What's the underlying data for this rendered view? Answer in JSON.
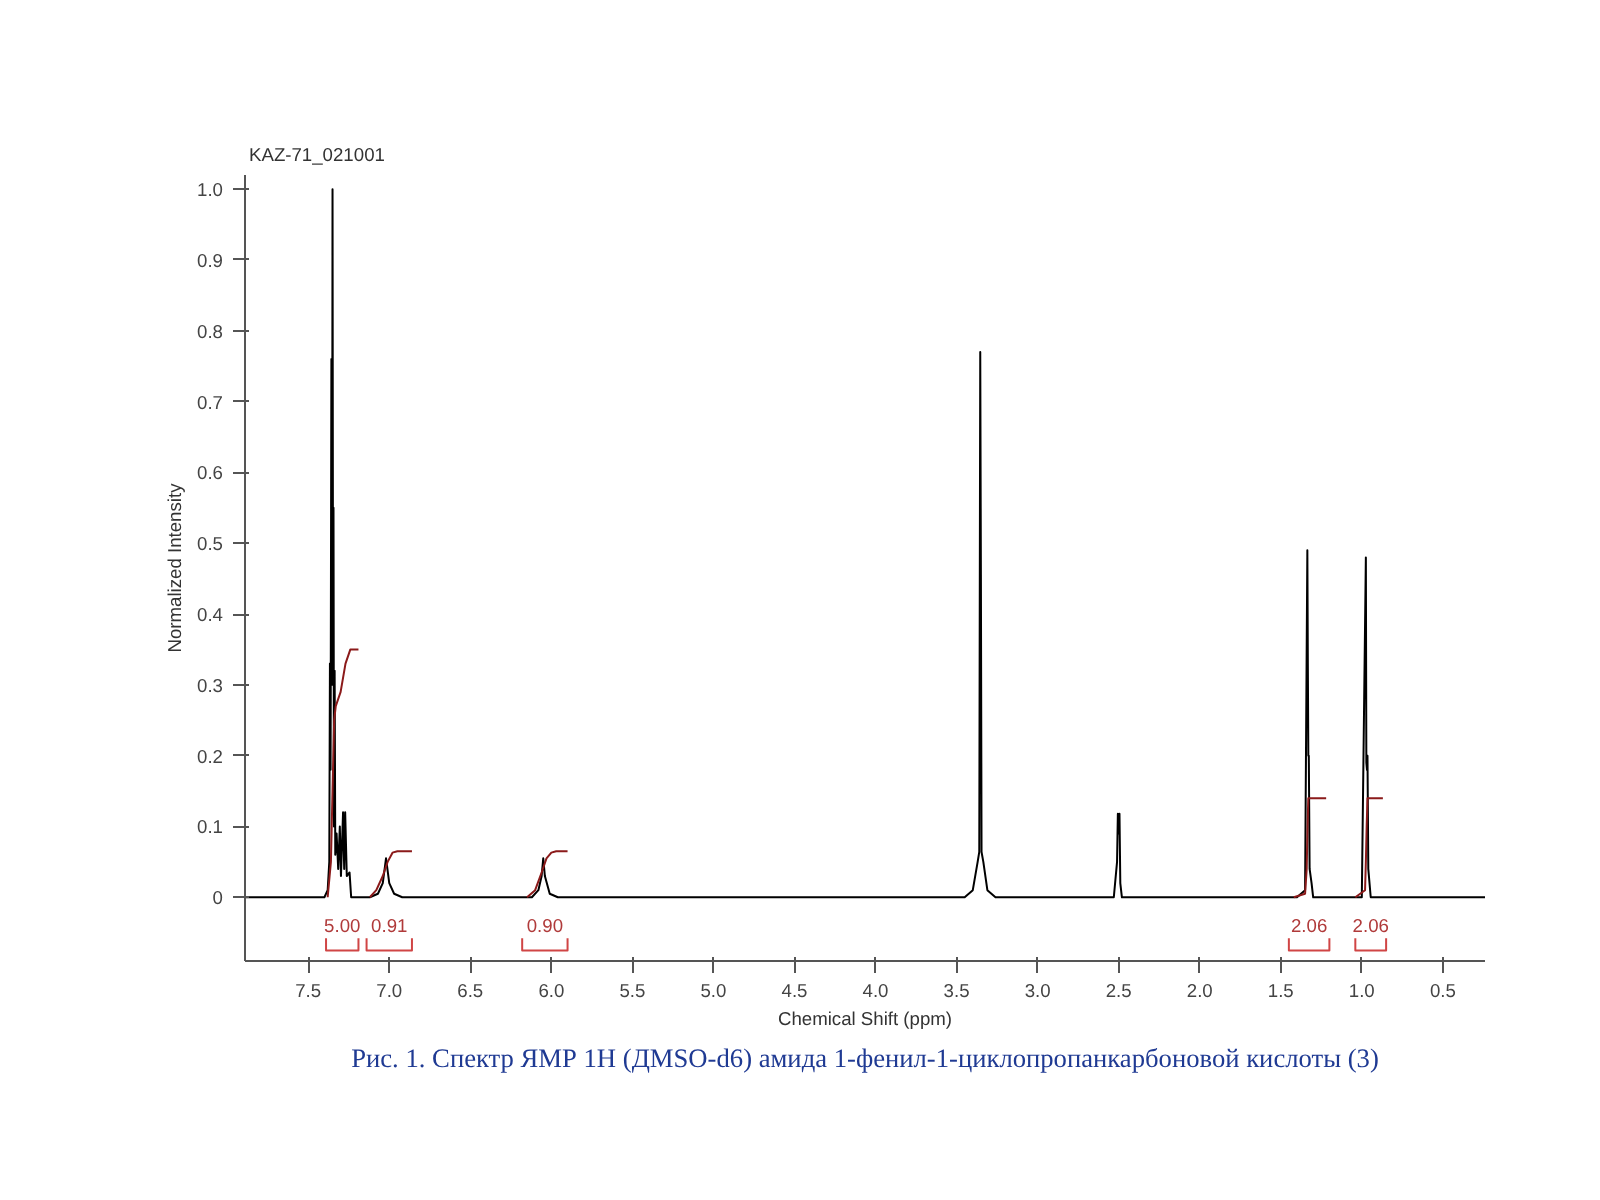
{
  "chart_data": {
    "type": "line",
    "title": "KAZ-71_021001",
    "xlabel": "Chemical Shift (ppm)",
    "ylabel": "Normalized Intensity",
    "xlim": [
      7.89,
      0.24
    ],
    "ylim": [
      -0.09,
      1.02
    ],
    "xticks": [
      7.5,
      {
        "value": 7,
        "label": "7.0"
      },
      6.5,
      {
        "value": 6,
        "label": "6.0"
      },
      5.5,
      {
        "value": 5,
        "label": "5.0"
      },
      4.5,
      {
        "value": 4,
        "label": "4.0"
      },
      3.5,
      {
        "value": 3,
        "label": "3.0"
      },
      2.5,
      {
        "value": 2,
        "label": "2.0"
      },
      1.5,
      {
        "value": 1,
        "label": "1.0"
      },
      0.5
    ],
    "yticks": [
      0,
      0.1,
      0.2,
      0.3,
      0.4,
      0.5,
      0.6,
      0.7,
      0.8,
      0.9,
      {
        "value": 1,
        "label": "1.0"
      }
    ],
    "grid": false,
    "series": [
      {
        "color": "#000000",
        "x": [
          7.89,
          7.4,
          7.38,
          7.37,
          7.366,
          7.362,
          7.357,
          7.353,
          7.35,
          7.347,
          7.344,
          7.341,
          7.337,
          7.333,
          7.325,
          7.315,
          7.305,
          7.298,
          7.285,
          7.278,
          7.272,
          7.262,
          7.245,
          7.235,
          7.12,
          7.07,
          7.04,
          7.02,
          7.0,
          6.97,
          6.92,
          6.12,
          6.08,
          6.06,
          6.05,
          6.04,
          6.01,
          5.96,
          3.45,
          3.4,
          3.37,
          3.36,
          3.354,
          3.35,
          3.346,
          3.335,
          3.31,
          3.26,
          2.53,
          2.51,
          2.505,
          2.5,
          2.495,
          2.49,
          2.48,
          1.4,
          1.35,
          1.336,
          1.333,
          1.33,
          1.327,
          1.322,
          1.31,
          1.3,
          1.0,
          0.975,
          0.972,
          0.968,
          0.965,
          0.96,
          0.945,
          0.24
        ],
        "values": [
          0,
          0,
          0.01,
          0.05,
          0.33,
          0.18,
          0.76,
          0.3,
          1.0,
          0.4,
          0.55,
          0.1,
          0.32,
          0.06,
          0.09,
          0.04,
          0.1,
          0.03,
          0.12,
          0.04,
          0.12,
          0.03,
          0.035,
          0,
          0,
          0.005,
          0.02,
          0.055,
          0.02,
          0.005,
          0,
          0,
          0.01,
          0.03,
          0.055,
          0.03,
          0.005,
          0,
          0,
          0.01,
          0.05,
          0.064,
          0.77,
          0.455,
          0.064,
          0.05,
          0.01,
          0,
          0,
          0.05,
          0.118,
          0.09,
          0.118,
          0.02,
          0,
          0,
          0.01,
          0.49,
          0.33,
          0.2,
          0.2,
          0.04,
          0.02,
          0,
          0,
          0.48,
          0.19,
          0.18,
          0.2,
          0.04,
          0,
          0
        ]
      },
      {
        "color": "#8b1a1a",
        "x": [
          7.38,
          7.36,
          7.35,
          7.34,
          7.33,
          7.3,
          7.27,
          7.24,
          7.19,
          null,
          7.12,
          7.08,
          7.04,
          7.01,
          6.98,
          6.95,
          6.86,
          null,
          6.15,
          6.1,
          6.06,
          6.03,
          6.0,
          5.97,
          5.9,
          null,
          1.42,
          1.35,
          1.34,
          1.335,
          1.33,
          1.32,
          1.22,
          null,
          1.04,
          0.98,
          0.975,
          0.97,
          0.965,
          0.95,
          0.87
        ],
        "values": [
          0,
          0.05,
          0.15,
          0.25,
          0.27,
          0.29,
          0.33,
          0.35,
          0.35,
          null,
          0,
          0.01,
          0.03,
          0.05,
          0.063,
          0.065,
          0.065,
          null,
          0,
          0.01,
          0.035,
          0.055,
          0.063,
          0.065,
          0.065,
          null,
          0,
          0.005,
          0.04,
          0.1,
          0.14,
          0.14,
          0.14,
          null,
          0,
          0.01,
          0.05,
          0.1,
          0.14,
          0.14,
          0.14
        ]
      },
      {
        "color": "#d04545",
        "x": [
          7.39,
          7.39,
          7.19,
          7.19,
          null,
          7.14,
          7.14,
          6.86,
          6.86,
          null,
          6.18,
          6.18,
          5.9,
          5.9,
          null,
          1.45,
          1.45,
          1.2,
          1.2,
          null,
          1.04,
          1.04,
          0.85,
          0.85
        ],
        "values": [
          -0.058,
          -0.075,
          -0.075,
          -0.058,
          null,
          -0.058,
          -0.075,
          -0.075,
          -0.058,
          null,
          -0.058,
          -0.075,
          -0.075,
          -0.058,
          null,
          -0.058,
          -0.075,
          -0.075,
          -0.058,
          null,
          -0.058,
          -0.075,
          -0.075,
          -0.058
        ]
      }
    ],
    "annotations": [
      {
        "text": "5.00",
        "x": 7.29,
        "y": -0.075
      },
      {
        "text": "0.91",
        "x": 7.0,
        "y": -0.075
      },
      {
        "text": "0.90",
        "x": 6.04,
        "y": -0.075
      },
      {
        "text": "2.06",
        "x": 1.325,
        "y": -0.075
      },
      {
        "text": "2.06",
        "x": 0.945,
        "y": -0.075
      },
      "Рис. 1. Спектр ЯМР 1H (ДMSO-d6) амида 1-фенил-1-циклопропанкарбоновой кислоты (3)"
    ]
  }
}
